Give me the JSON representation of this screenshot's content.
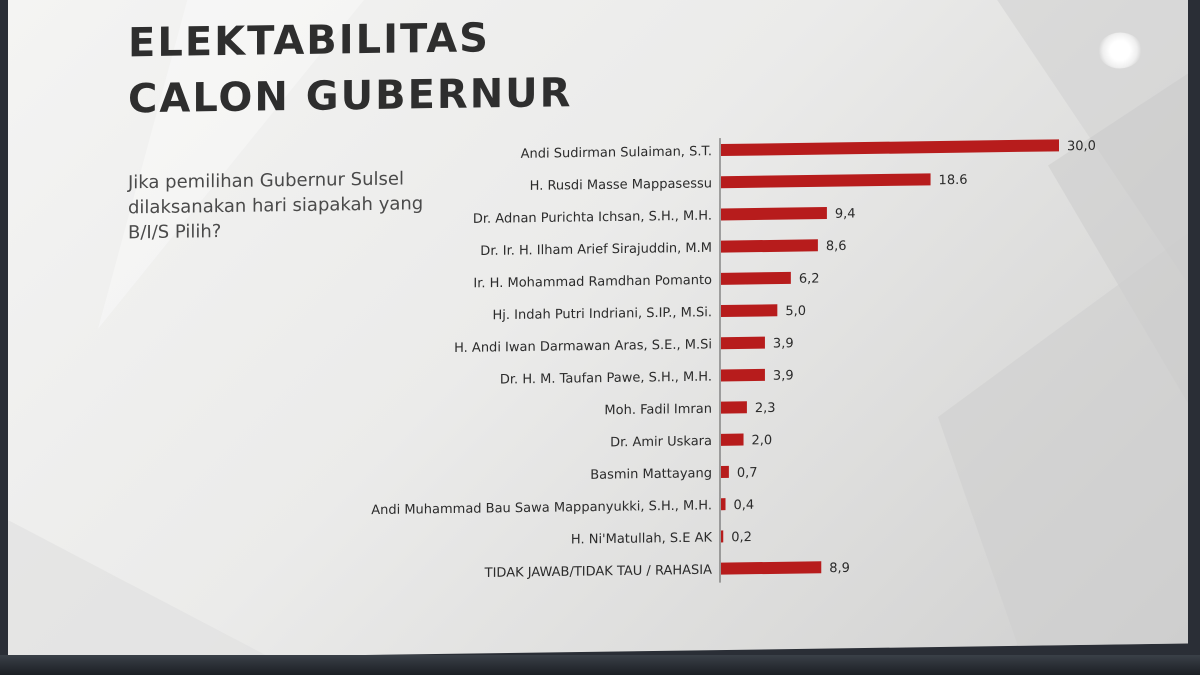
{
  "slide": {
    "title_line1": "ELEKTABILITAS",
    "title_line2": "CALON GUBERNUR",
    "question": "Jika pemilihan Gubernur Sulsel dilaksanakan hari siapakah yang B/I/S Pilih?"
  },
  "colors": {
    "bar": "#b71c1c",
    "text": "#2b2b2b",
    "title": "#2e2e2e"
  },
  "chart_data": {
    "type": "bar",
    "orientation": "horizontal",
    "title": "",
    "xlabel": "",
    "ylabel": "",
    "xlim": [
      0,
      30
    ],
    "grid": false,
    "legend": "none",
    "categories": [
      "Andi Sudirman Sulaiman, S.T.",
      "H. Rusdi Masse Mappasessu",
      "Dr. Adnan Purichta Ichsan, S.H., M.H.",
      "Dr. Ir. H. Ilham Arief Sirajuddin, M.M",
      "Ir. H. Mohammad Ramdhan Pomanto",
      "Hj. Indah Putri Indriani, S.IP., M.Si.",
      "H. Andi Iwan Darmawan Aras, S.E., M.Si",
      "Dr. H. M. Taufan Pawe, S.H., M.H.",
      "Moh. Fadil Imran",
      "Dr. Amir Uskara",
      "Basmin Mattayang",
      "Andi Muhammad Bau Sawa Mappanyukki, S.H., M.H.",
      "H. Ni'Matullah, S.E AK",
      "TIDAK JAWAB/TIDAK TAU / RAHASIA"
    ],
    "values": [
      30.0,
      18.6,
      9.4,
      8.6,
      6.2,
      5.0,
      3.9,
      3.9,
      2.3,
      2.0,
      0.7,
      0.4,
      0.2,
      8.9
    ],
    "value_labels": [
      "30,0",
      "18.6",
      "9,4",
      "8,6",
      "6,2",
      "5,0",
      "3,9",
      "3,9",
      "2,3",
      "2,0",
      "0,7",
      "0,4",
      "0,2",
      "8,9"
    ]
  }
}
